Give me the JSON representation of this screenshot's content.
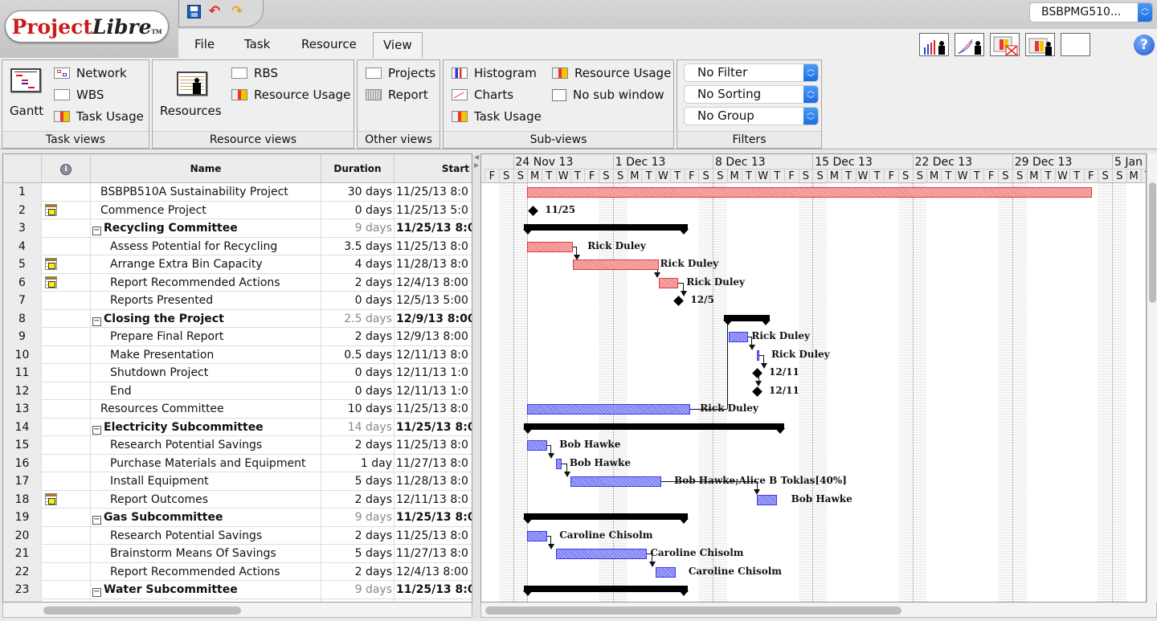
{
  "app": {
    "logo_main": "Project",
    "logo_italic": "Libre",
    "logo_tm": "TM"
  },
  "quick_access": [
    {
      "name": "save-icon",
      "glyph": "💾"
    },
    {
      "name": "undo-icon",
      "glyph": "↶"
    },
    {
      "name": "redo-icon",
      "glyph": "↷"
    }
  ],
  "menu": {
    "tabs": [
      {
        "label": "File"
      },
      {
        "label": "Task"
      },
      {
        "label": "Resource"
      },
      {
        "label": "View",
        "active": true
      }
    ]
  },
  "project_selector": {
    "value": "BSBPMG510..."
  },
  "toolbar_right": {
    "icons": [
      "histogram-icon",
      "charts-icon",
      "task-usage-close-icon",
      "resource-usage-icon",
      "no-subwindow-icon"
    ],
    "help": "?"
  },
  "ribbon": {
    "task_views": {
      "label": "Task views",
      "gantt": "Gantt",
      "items": [
        "Network",
        "WBS",
        "Task Usage"
      ]
    },
    "resource_views": {
      "label": "Resource views",
      "resources": "Resources",
      "items": [
        "RBS",
        "Resource Usage"
      ]
    },
    "other_views": {
      "label": "Other views",
      "items": [
        "Projects",
        "Report"
      ]
    },
    "sub_views": {
      "label": "Sub-views",
      "items": [
        "Histogram",
        "Charts",
        "Task Usage",
        "Resource Usage",
        "No sub window"
      ]
    },
    "filters": {
      "label": "Filters",
      "filter": "No Filter",
      "sorting": "No Sorting",
      "group": "No Group"
    }
  },
  "table": {
    "columns": [
      "",
      "ⓘ",
      "Name",
      "Duration",
      "Start"
    ],
    "rows": [
      {
        "id": "1",
        "name": "BSBPB510A Sustainability Project",
        "duration": "30 days",
        "start": "11/25/13 8:0",
        "level": 1,
        "summary": false,
        "cal": false
      },
      {
        "id": "2",
        "name": "Commence Project",
        "duration": "0 days",
        "start": "11/25/13 5:0",
        "level": 1,
        "summary": false,
        "cal": true
      },
      {
        "id": "3",
        "name": "Recycling Committee",
        "duration": "9 days",
        "start": "11/25/13 8:0",
        "level": 1,
        "summary": true,
        "cal": false
      },
      {
        "id": "4",
        "name": "Assess Potential for Recycling",
        "duration": "3.5 days",
        "start": "11/25/13 8:0",
        "level": 2,
        "summary": false,
        "cal": false
      },
      {
        "id": "5",
        "name": "Arrange Extra Bin Capacity",
        "duration": "4 days",
        "start": "11/28/13 8:0",
        "level": 2,
        "summary": false,
        "cal": true
      },
      {
        "id": "6",
        "name": "Report Recommended Actions",
        "duration": "2 days",
        "start": "12/4/13 8:00",
        "level": 2,
        "summary": false,
        "cal": true
      },
      {
        "id": "7",
        "name": "Reports Presented",
        "duration": "0 days",
        "start": "12/5/13 5:00",
        "level": 2,
        "summary": false,
        "cal": false
      },
      {
        "id": "8",
        "name": "Closing the Project",
        "duration": "2.5 days",
        "start": "12/9/13 8:00",
        "level": 1,
        "summary": true,
        "cal": false
      },
      {
        "id": "9",
        "name": "Prepare Final Report",
        "duration": "2 days",
        "start": "12/9/13 8:00",
        "level": 2,
        "summary": false,
        "cal": false
      },
      {
        "id": "10",
        "name": "Make Presentation",
        "duration": "0.5 days",
        "start": "12/11/13 8:0",
        "level": 2,
        "summary": false,
        "cal": false
      },
      {
        "id": "11",
        "name": "Shutdown Project",
        "duration": "0 days",
        "start": "12/11/13 1:0",
        "level": 2,
        "summary": false,
        "cal": false
      },
      {
        "id": "12",
        "name": "End",
        "duration": "0 days",
        "start": "12/11/13 1:0",
        "level": 2,
        "summary": false,
        "cal": false
      },
      {
        "id": "13",
        "name": "Resources Committee",
        "duration": "10 days",
        "start": "11/25/13 8:0",
        "level": 1,
        "summary": false,
        "cal": false
      },
      {
        "id": "14",
        "name": "Electricity Subcommittee",
        "duration": "14 days",
        "start": "11/25/13 8:0",
        "level": 1,
        "summary": true,
        "cal": false
      },
      {
        "id": "15",
        "name": "Research Potential Savings",
        "duration": "2 days",
        "start": "11/25/13 8:0",
        "level": 2,
        "summary": false,
        "cal": false
      },
      {
        "id": "16",
        "name": "Purchase Materials and Equipment",
        "duration": "1 day",
        "start": "11/27/13 8:0",
        "level": 2,
        "summary": false,
        "cal": false
      },
      {
        "id": "17",
        "name": "Install Equipment",
        "duration": "5 days",
        "start": "11/28/13 8:0",
        "level": 2,
        "summary": false,
        "cal": false
      },
      {
        "id": "18",
        "name": "Report Outcomes",
        "duration": "2 days",
        "start": "12/11/13 8:0",
        "level": 2,
        "summary": false,
        "cal": true
      },
      {
        "id": "19",
        "name": "Gas Subcommittee",
        "duration": "9 days",
        "start": "11/25/13 8:0",
        "level": 1,
        "summary": true,
        "cal": false
      },
      {
        "id": "20",
        "name": "Research Potential Savings",
        "duration": "2 days",
        "start": "11/25/13 8:0",
        "level": 2,
        "summary": false,
        "cal": false
      },
      {
        "id": "21",
        "name": "Brainstorm Means Of Savings",
        "duration": "5 days",
        "start": "11/27/13 8:0",
        "level": 2,
        "summary": false,
        "cal": false
      },
      {
        "id": "22",
        "name": "Report Recommended Actions",
        "duration": "2 days",
        "start": "12/4/13 8:00",
        "level": 2,
        "summary": false,
        "cal": false
      },
      {
        "id": "23",
        "name": "Water Subcommittee",
        "duration": "9 days",
        "start": "11/25/13 8:0",
        "level": 1,
        "summary": true,
        "cal": false
      }
    ]
  },
  "gantt": {
    "weeks": [
      "24 Nov 13",
      "1 Dec 13",
      "8 Dec 13",
      "15 Dec 13",
      "22 Dec 13",
      "29 Dec 13",
      "5 Jan"
    ],
    "days": [
      "F",
      "S",
      "S",
      "M",
      "T",
      "W",
      "T",
      "F",
      "S",
      "S",
      "M",
      "T",
      "W",
      "T",
      "F",
      "S",
      "S",
      "M",
      "T",
      "W",
      "T",
      "F",
      "S",
      "S",
      "M",
      "T",
      "W",
      "T",
      "F",
      "S",
      "S",
      "M",
      "T",
      "W",
      "T",
      "F",
      "S",
      "S",
      "M",
      "T",
      "W",
      "T",
      "F",
      "S",
      "S",
      "M",
      "T"
    ],
    "labels": {
      "r2": "11/25",
      "r4": "Rick Duley",
      "r5": "Rick Duley",
      "r6": "Rick Duley",
      "r7": "12/5",
      "r9": "Rick Duley",
      "r10": "Rick Duley",
      "r11": "12/11",
      "r12": "12/11",
      "r13": "Rick Duley",
      "r15": "Bob Hawke",
      "r16": "Bob Hawke",
      "r17": "Bob Hawke;Alice B Toklas[40%]",
      "r18": "Bob Hawke",
      "r20": "Caroline Chisolm",
      "r21": "Caroline Chisolm",
      "r22": "Caroline Chisolm"
    },
    "colors": {
      "critical": "#e23a3a",
      "normal": "#3a3af0",
      "summary": "#000000"
    }
  }
}
